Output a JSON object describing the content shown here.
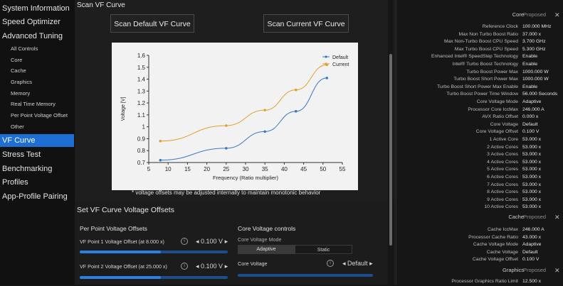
{
  "sidebar": {
    "items": [
      {
        "label": "System Information",
        "level": 0,
        "active": false
      },
      {
        "label": "Speed Optimizer",
        "level": 0,
        "active": false
      },
      {
        "label": "Advanced Tuning",
        "level": 0,
        "active": false
      },
      {
        "label": "All Controls",
        "level": 1,
        "active": false
      },
      {
        "label": "Core",
        "level": 1,
        "active": false
      },
      {
        "label": "Cache",
        "level": 1,
        "active": false
      },
      {
        "label": "Graphics",
        "level": 1,
        "active": false
      },
      {
        "label": "Memory",
        "level": 1,
        "active": false
      },
      {
        "label": "Real Time Memory",
        "level": 1,
        "active": false
      },
      {
        "label": "Per Point Voltage Offset",
        "level": 1,
        "active": false
      },
      {
        "label": "Other",
        "level": 1,
        "active": false
      },
      {
        "label": "VF Curve",
        "level": 0,
        "active": true
      },
      {
        "label": "Stress Test",
        "level": 0,
        "active": false
      },
      {
        "label": "Benchmarking",
        "level": 0,
        "active": false
      },
      {
        "label": "Profiles",
        "level": 0,
        "active": false
      },
      {
        "label": "App-Profile Pairing",
        "level": 0,
        "active": false
      }
    ]
  },
  "main": {
    "scan_title": "Scan VF Curve",
    "scan_default_label": "Scan Default VF Curve",
    "scan_current_label": "Scan Current VF Curve",
    "note": "* voltage offsets may be adjusted internally to maintain monotonic behavior",
    "set_title": "Set VF Curve Voltage Offsets",
    "per_point_title": "Per Point Voltage Offsets",
    "vf_point_1_label": "VF Point 1 Voltage Offset (at 8.000 x)",
    "vf_point_1_value": "0.100 V",
    "vf_point_1_fill": 0.55,
    "vf_point_2_label": "VF Point 2 Voltage Offset (at 25.000 x)",
    "vf_point_2_value": "0.100 V",
    "vf_point_2_fill": 0.55,
    "core_controls_title": "Core Voltage controls",
    "core_voltage_mode_label": "Core Voltage Mode",
    "mode_adaptive": "Adaptive",
    "mode_static": "Static",
    "core_voltage_label": "Core Voltage",
    "core_voltage_value": "Default",
    "colors": {
      "accent": "#1e6fd3",
      "default_series": "#3b78c4",
      "current_series": "#e0a030"
    }
  },
  "chart_data": {
    "type": "line",
    "xlabel": "Frequency (Ratio multiplier)",
    "ylabel": "Voltage [V]",
    "xlim": [
      5,
      55
    ],
    "ylim": [
      0.7,
      1.6
    ],
    "xticks": [
      "5",
      "10",
      "15",
      "20",
      "25",
      "30",
      "35",
      "40",
      "45",
      "50",
      "55"
    ],
    "yticks": [
      "0.7",
      "0.8",
      "0.9",
      "1",
      "1.1",
      "1.2",
      "1.3",
      "1.4",
      "1.5",
      "1.6"
    ],
    "grid": false,
    "legend": "top-right",
    "series": [
      {
        "name": "Default",
        "color": "#3b78c4",
        "x": [
          8,
          25,
          35,
          43,
          51
        ],
        "y": [
          0.72,
          0.82,
          0.96,
          1.13,
          1.41
        ]
      },
      {
        "name": "Current",
        "color": "#e0a030",
        "x": [
          8,
          25,
          35,
          43,
          51
        ],
        "y": [
          0.88,
          1.01,
          1.14,
          1.31,
          1.52
        ]
      }
    ]
  },
  "panel": {
    "core_header": "Core",
    "proposed": "Proposed",
    "close_glyph": "✕",
    "core_rows": [
      {
        "k": "Reference Clock",
        "v": "100.000 MHz"
      },
      {
        "k": "Max Non Turbo Boost Ratio",
        "v": "37.000 x"
      },
      {
        "k": "Max Non-Turbo Boost CPU Speed",
        "v": "3.700 GHz"
      },
      {
        "k": "Max Turbo Boost CPU Speed",
        "v": "5.300 GHz"
      },
      {
        "k": "Enhanced Intel® SpeedStep Technology",
        "v": "Enable"
      },
      {
        "k": "Intel® Turbo Boost Technology",
        "v": "Enable"
      },
      {
        "k": "Turbo Boost Power Max",
        "v": "1000.000 W"
      },
      {
        "k": "Turbo Boost Short Power Max",
        "v": "1000.000 W"
      },
      {
        "k": "Turbo Boost Short Power Max Enable",
        "v": "Enable"
      },
      {
        "k": "Turbo Boost Power Time Window",
        "v": "56.000 Seconds"
      },
      {
        "k": "Core Voltage Mode",
        "v": "Adaptive"
      },
      {
        "k": "Processor Core IccMax",
        "v": "246.000 A"
      },
      {
        "k": "AVX Ratio Offset",
        "v": "0.000 x"
      },
      {
        "k": "Core Voltage",
        "v": "Default"
      },
      {
        "k": "Core Voltage Offset",
        "v": "0.100 V"
      },
      {
        "k": "1 Active Core",
        "v": "53.000 x"
      },
      {
        "k": "2 Active Cores",
        "v": "53.000 x"
      },
      {
        "k": "3 Active Cores",
        "v": "53.000 x"
      },
      {
        "k": "4 Active Cores",
        "v": "53.000 x"
      },
      {
        "k": "5 Active Cores",
        "v": "53.000 x"
      },
      {
        "k": "6 Active Cores",
        "v": "53.000 x"
      },
      {
        "k": "7 Active Cores",
        "v": "53.000 x"
      },
      {
        "k": "8 Active Cores",
        "v": "53.000 x"
      },
      {
        "k": "9 Active Cores",
        "v": "53.000 x"
      },
      {
        "k": "10 Active Cores",
        "v": "53.000 x"
      }
    ],
    "cache_header": "Cache",
    "cache_rows": [
      {
        "k": "Cache IccMax",
        "v": "246.000 A"
      },
      {
        "k": "Processor Cache Ratio",
        "v": "43.000 x"
      },
      {
        "k": "Cache Voltage Mode",
        "v": "Adaptive"
      },
      {
        "k": "Cache Voltage",
        "v": "Default"
      },
      {
        "k": "Cache Voltage Offset",
        "v": "0.100 V"
      }
    ],
    "graphics_header": "Graphics",
    "graphics_rows": [
      {
        "k": "Processor Graphics Ratio Limit",
        "v": "12.500 x"
      }
    ]
  }
}
